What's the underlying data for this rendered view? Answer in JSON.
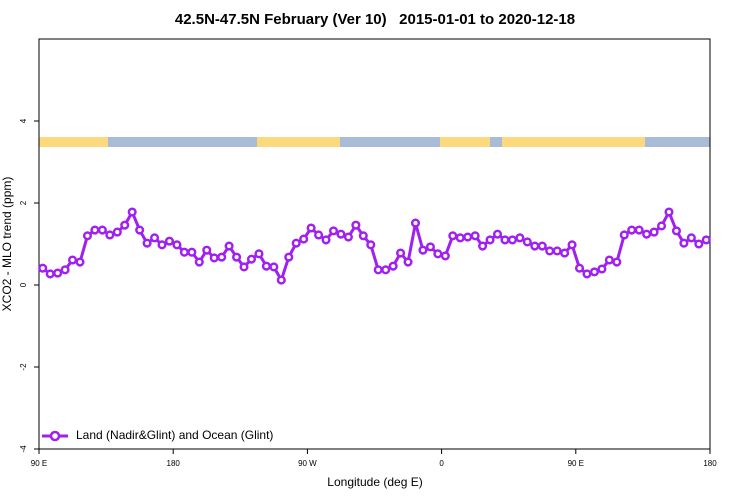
{
  "chart_data": {
    "type": "line",
    "title": "42.5N-47.5N February (Ver 10)   2015-01-01 to 2020-12-18",
    "xlabel": "Longitude (deg E)",
    "ylabel": "XCO2 - MLO trend (ppm)",
    "xlim": [
      90,
      540
    ],
    "xticks": [
      {
        "value": 90,
        "label": "90 E"
      },
      180,
      {
        "value": 270,
        "label": "90 W"
      },
      {
        "value": 360,
        "label": "0"
      },
      {
        "value": 450,
        "label": "90 E"
      },
      {
        "value": 540,
        "label": "180"
      }
    ],
    "ylim": [
      -4,
      6
    ],
    "yticks": [
      -4,
      -2,
      0,
      2,
      4
    ],
    "x": [
      92.5,
      97.5,
      102.5,
      107.5,
      112.5,
      117.5,
      122.5,
      127.5,
      132.5,
      137.5,
      142.5,
      147.5,
      152.5,
      157.5,
      162.5,
      167.5,
      172.5,
      177.5,
      182.5,
      187.5,
      192.5,
      197.5,
      202.5,
      207.5,
      212.5,
      217.5,
      222.5,
      227.5,
      232.5,
      237.5,
      242.5,
      247.5,
      252.5,
      257.5,
      262.5,
      267.5,
      272.5,
      277.5,
      282.5,
      287.5,
      292.5,
      297.5,
      302.5,
      307.5,
      312.5,
      317.5,
      322.5,
      327.5,
      332.5,
      337.5,
      342.5,
      347.5,
      352.5,
      357.5,
      362.5,
      367.5,
      372.5,
      377.5,
      382.5,
      387.5,
      392.5,
      397.5,
      402.5,
      407.5,
      412.5,
      417.5,
      422.5,
      427.5,
      432.5,
      437.5,
      442.5,
      447.5,
      452.5,
      457.5,
      462.5,
      467.5,
      472.5,
      477.5,
      482.5,
      487.5,
      492.5,
      497.5,
      502.5,
      507.5,
      512.5,
      517.5,
      522.5,
      527.5,
      532.5,
      537.5
    ],
    "series": [
      {
        "name": "Land (Nadir&Glint) and Ocean (Glint)",
        "color": "#a020f0",
        "values": [
          0.41,
          0.27,
          0.29,
          0.37,
          0.61,
          0.56,
          1.2,
          1.34,
          1.34,
          1.22,
          1.29,
          1.46,
          1.78,
          1.34,
          1.02,
          1.15,
          0.98,
          1.07,
          0.98,
          0.8,
          0.8,
          0.56,
          0.85,
          0.66,
          0.68,
          0.95,
          0.68,
          0.44,
          0.63,
          0.76,
          0.46,
          0.44,
          0.12,
          0.68,
          1.02,
          1.12,
          1.39,
          1.22,
          1.1,
          1.32,
          1.24,
          1.17,
          1.46,
          1.2,
          0.98,
          0.37,
          0.37,
          0.46,
          0.78,
          0.56,
          1.51,
          0.85,
          0.93,
          0.76,
          0.71,
          1.2,
          1.15,
          1.17,
          1.2,
          0.95,
          1.1,
          1.24,
          1.1,
          1.1,
          1.15,
          1.05,
          0.95,
          0.95,
          0.83,
          0.83,
          0.78,
          0.98,
          0.41,
          0.27,
          0.32,
          0.39,
          0.61,
          0.56,
          1.22,
          1.34,
          1.34,
          1.24,
          1.29,
          1.44,
          1.78,
          1.32,
          1.02,
          1.15,
          1.0,
          1.1
        ]
      }
    ],
    "legend": "bottom-left"
  }
}
